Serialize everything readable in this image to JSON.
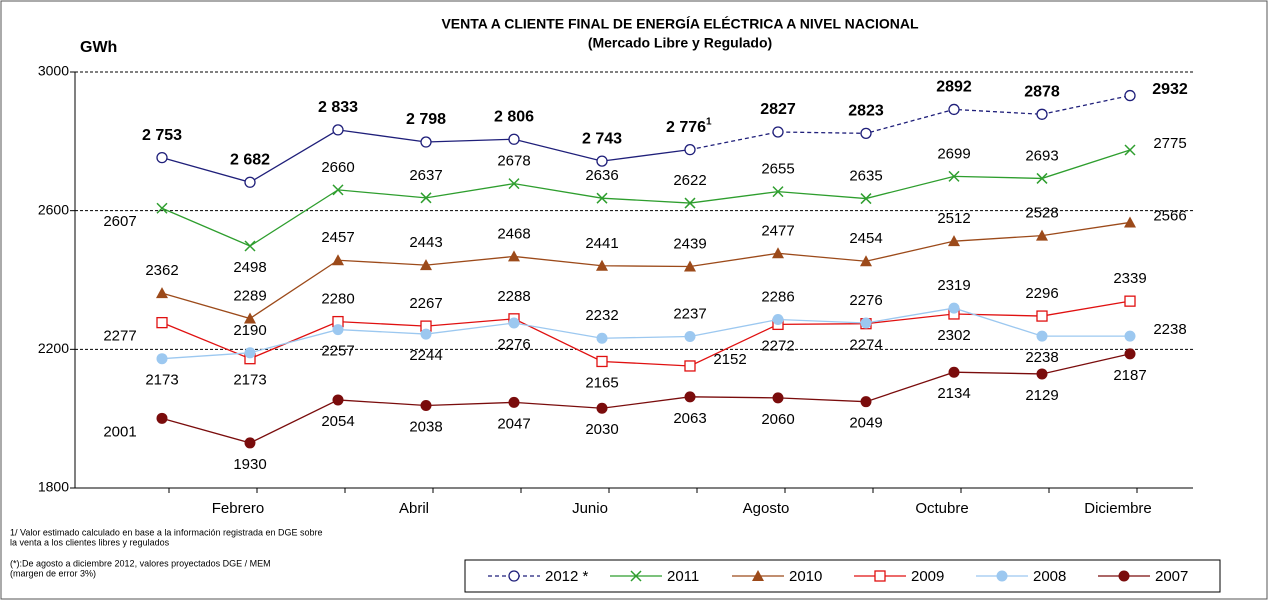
{
  "chart_data": {
    "type": "line",
    "title": "VENTA A CLIENTE FINAL DE ENERGÍA ELÉCTRICA A NIVEL NACIONAL",
    "subtitle": "(Mercado Libre y Regulado)",
    "y_label": "GWh",
    "categories": [
      null,
      "Febrero",
      null,
      "Abril",
      null,
      "Junio",
      null,
      "Agosto",
      null,
      "Octubre",
      null,
      "Diciembre"
    ],
    "ylim": [
      1800,
      3000
    ],
    "yticks": [
      1800,
      2200,
      2600,
      3000
    ],
    "grid": true,
    "series": [
      {
        "name": "2012 *",
        "color": "#1f1f7a",
        "marker": "open-circle",
        "dashed_from": 6,
        "values": [
          2753,
          2682,
          2833,
          2798,
          2806,
          2743,
          2776,
          2827,
          2823,
          2892,
          2878,
          2932
        ],
        "value_labels": [
          "2 753",
          "2 682",
          "2 833",
          "2 798",
          "2 806",
          "2 743",
          "2 776",
          "2827",
          "2823",
          "2892",
          "2878",
          "2932"
        ],
        "value_label_marks": [
          null,
          null,
          null,
          null,
          null,
          null,
          "1",
          null,
          null,
          null,
          null,
          null
        ],
        "label_colors": [
          "#000000",
          "#000000",
          "#000000",
          "#000000",
          "#000000",
          "#000000",
          "#000000",
          "#2a8a1f",
          "#2a8a1f",
          "#2a8a1f",
          "#2a8a1f",
          "#2a8a1f"
        ]
      },
      {
        "name": "2011",
        "color": "#2e9e2e",
        "marker": "x",
        "values": [
          2607,
          2498,
          2660,
          2637,
          2678,
          2636,
          2622,
          2655,
          2635,
          2699,
          2693,
          2775
        ]
      },
      {
        "name": "2010",
        "color": "#9c4a1a",
        "marker": "triangle",
        "values": [
          2362,
          2289,
          2457,
          2443,
          2468,
          2441,
          2439,
          2477,
          2454,
          2512,
          2528,
          2566
        ]
      },
      {
        "name": "2009",
        "color": "#e01010",
        "marker": "open-square",
        "values": [
          2277,
          2173,
          2280,
          2267,
          2288,
          2165,
          2152,
          2272,
          2274,
          2302,
          2296,
          2339
        ]
      },
      {
        "name": "2008",
        "color": "#9cc8f0",
        "marker": "circle",
        "values": [
          2173,
          2190,
          2257,
          2244,
          2276,
          2232,
          2237,
          2286,
          2276,
          2319,
          2238,
          2238
        ]
      },
      {
        "name": "2007",
        "color": "#7a0c0c",
        "marker": "circle",
        "values": [
          2001,
          1930,
          2054,
          2038,
          2047,
          2030,
          2063,
          2060,
          2049,
          2134,
          2129,
          2187
        ]
      }
    ],
    "notes": [
      "1/ Valor estimado calculado en base a la información registrada en DGE sobre",
      "la venta a los clientes libres y regulados",
      "(*):De agosto a diciembre 2012, valores proyectados DGE / MEM",
      "(margen de error 3%)"
    ]
  }
}
